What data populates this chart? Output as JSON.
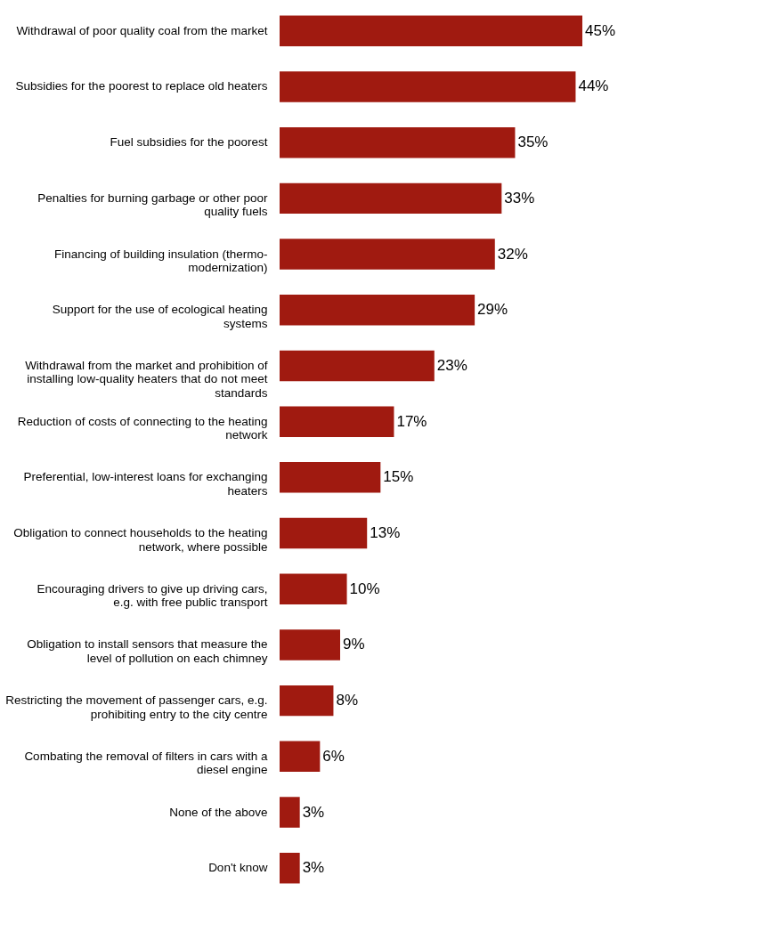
{
  "chart_data": {
    "type": "bar",
    "orientation": "horizontal",
    "color": "#a01a10",
    "categories": [
      "Withdrawal of poor quality coal from the market",
      "Subsidies for the poorest to replace old heaters",
      "Fuel subsidies for the poorest",
      "Penalties for burning garbage or other poor quality fuels",
      "Financing of building insulation (thermo-modernization)",
      "Support for the use of ecological heating systems",
      "Withdrawal from the market and prohibition of installing low-quality heaters that do not meet standards",
      "Reduction of costs of connecting to the heating network",
      "Preferential, low-interest loans for exchanging heaters",
      "Obligation to connect households to the heating network, where possible",
      "Encouraging drivers to give up driving cars, e.g. with free public transport",
      "Obligation to install sensors that measure the level of pollution on each chimney",
      "Restricting the movement of passenger cars, e.g. prohibiting entry to the city centre",
      "Combating the removal of filters in cars with a diesel engine",
      "None of the above",
      "Don't know"
    ],
    "values": [
      45,
      44,
      35,
      33,
      32,
      29,
      23,
      17,
      15,
      13,
      10,
      9,
      8,
      6,
      3,
      3
    ],
    "value_labels": [
      "45%",
      "44%",
      "35%",
      "33%",
      "32%",
      "29%",
      "23%",
      "17%",
      "15%",
      "13%",
      "10%",
      "9%",
      "8%",
      "6%",
      "3%",
      "3%"
    ],
    "grid": false
  }
}
